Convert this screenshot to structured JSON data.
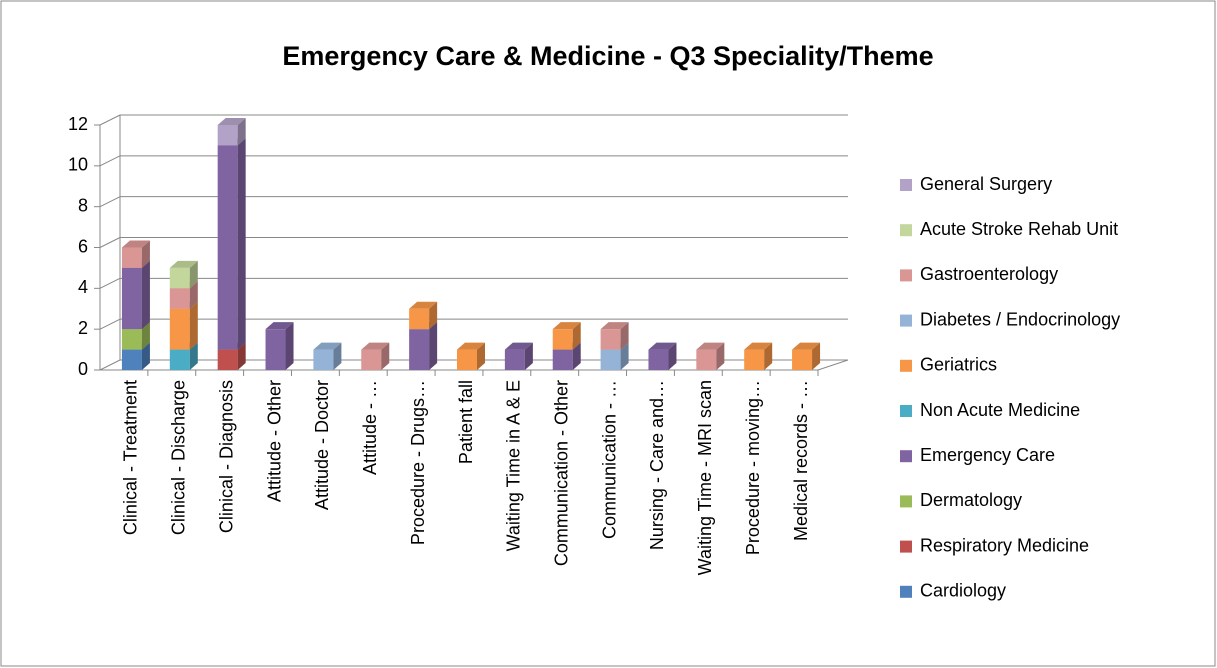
{
  "chart_data": {
    "type": "bar3d-stacked",
    "title": "Emergency Care & Medicine - Q3 Speciality/Theme",
    "categories": [
      "Clinical -  Treatment",
      "Clinical -  Discharge",
      "Clinical -  Diagnosis",
      "Attitude -  Other",
      "Attitude -  Doctor",
      "Attitude - …",
      "Procedure - Drugs…",
      "Patient fall",
      "Waiting Time in A & E",
      "Communication -  Other",
      "Communication - …",
      "Nursing - Care and…",
      "Waiting Time - MRI scan",
      "Procedure - moving…",
      "Medical records - …"
    ],
    "series": [
      {
        "name": "Cardiology",
        "color": "#4f81bd",
        "values": [
          1,
          0,
          0,
          0,
          0,
          0,
          0,
          0,
          0,
          0,
          0,
          0,
          0,
          0,
          0
        ]
      },
      {
        "name": "Respiratory Medicine",
        "color": "#c0504d",
        "values": [
          0,
          0,
          1,
          0,
          0,
          0,
          0,
          0,
          0,
          0,
          0,
          0,
          0,
          0,
          0
        ]
      },
      {
        "name": "Dermatology",
        "color": "#9bbb59",
        "values": [
          1,
          0,
          0,
          0,
          0,
          0,
          0,
          0,
          0,
          0,
          0,
          0,
          0,
          0,
          0
        ]
      },
      {
        "name": "Emergency Care",
        "color": "#8064a2",
        "values": [
          3,
          0,
          10,
          2,
          0,
          0,
          2,
          0,
          1,
          1,
          0,
          1,
          0,
          0,
          0
        ]
      },
      {
        "name": "Non Acute Medicine",
        "color": "#4bacc6",
        "values": [
          0,
          1,
          0,
          0,
          0,
          0,
          0,
          0,
          0,
          0,
          0,
          0,
          0,
          0,
          0
        ]
      },
      {
        "name": "Geriatrics",
        "color": "#f79646",
        "values": [
          0,
          2,
          0,
          0,
          0,
          0,
          1,
          1,
          0,
          1,
          0,
          0,
          0,
          1,
          1
        ]
      },
      {
        "name": "Diabetes / Endocrinology",
        "color": "#95b3d7",
        "values": [
          0,
          0,
          0,
          0,
          1,
          0,
          0,
          0,
          0,
          0,
          1,
          0,
          0,
          0,
          0
        ]
      },
      {
        "name": "Gastroenterology",
        "color": "#d99694",
        "values": [
          1,
          1,
          0,
          0,
          0,
          1,
          0,
          0,
          0,
          0,
          1,
          0,
          1,
          0,
          0
        ]
      },
      {
        "name": "Acute Stroke Rehab Unit",
        "color": "#c3d69b",
        "values": [
          0,
          1,
          0,
          0,
          0,
          0,
          0,
          0,
          0,
          0,
          0,
          0,
          0,
          0,
          0
        ]
      },
      {
        "name": "General Surgery",
        "color": "#b3a2c7",
        "values": [
          0,
          0,
          1,
          0,
          0,
          0,
          0,
          0,
          0,
          0,
          0,
          0,
          0,
          0,
          0
        ]
      }
    ],
    "ylim": [
      0,
      12
    ],
    "yticks": [
      0,
      2,
      4,
      6,
      8,
      10,
      12
    ],
    "grid": true,
    "legend": "right"
  }
}
